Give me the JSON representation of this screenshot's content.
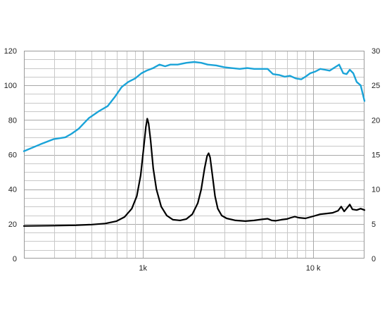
{
  "chart_data": {
    "type": "line",
    "title": "",
    "xlabel": "",
    "ylabel": "",
    "x_scale": "log",
    "xlim": [
      200,
      20000
    ],
    "ylim": [
      0,
      120
    ],
    "y2lim": [
      0,
      30
    ],
    "grid": true,
    "x_tick_labels": [
      {
        "value": 1000,
        "label": "1k"
      },
      {
        "value": 10000,
        "label": "10 k"
      }
    ],
    "y_ticks": [
      0,
      20,
      40,
      60,
      80,
      100,
      120
    ],
    "y2_ticks": [
      0,
      5,
      10,
      15,
      20,
      25,
      30
    ],
    "series": [
      {
        "axis": "left",
        "color": "#1aa3d8",
        "points": [
          [
            200,
            62
          ],
          [
            250,
            66
          ],
          [
            300,
            69
          ],
          [
            350,
            70
          ],
          [
            380,
            72
          ],
          [
            420,
            75
          ],
          [
            480,
            81
          ],
          [
            550,
            85
          ],
          [
            620,
            88
          ],
          [
            680,
            93
          ],
          [
            750,
            99
          ],
          [
            820,
            102
          ],
          [
            900,
            104
          ],
          [
            980,
            107
          ],
          [
            1050,
            108.5
          ],
          [
            1150,
            110
          ],
          [
            1250,
            112
          ],
          [
            1350,
            111
          ],
          [
            1450,
            112
          ],
          [
            1600,
            112
          ],
          [
            1800,
            113
          ],
          [
            2000,
            113.5
          ],
          [
            2200,
            113
          ],
          [
            2400,
            112
          ],
          [
            2700,
            111.5
          ],
          [
            3000,
            110.5
          ],
          [
            3300,
            110
          ],
          [
            3700,
            109.5
          ],
          [
            4100,
            110
          ],
          [
            4500,
            109.5
          ],
          [
            5000,
            109.5
          ],
          [
            5400,
            109.5
          ],
          [
            5800,
            106.5
          ],
          [
            6300,
            106
          ],
          [
            6800,
            105
          ],
          [
            7300,
            105.5
          ],
          [
            7900,
            104
          ],
          [
            8500,
            103.5
          ],
          [
            9000,
            105
          ],
          [
            9600,
            107
          ],
          [
            10300,
            108
          ],
          [
            11000,
            109.5
          ],
          [
            11700,
            109
          ],
          [
            12500,
            108.5
          ],
          [
            13200,
            110
          ],
          [
            14200,
            112
          ],
          [
            15000,
            107
          ],
          [
            15700,
            106.5
          ],
          [
            16400,
            109
          ],
          [
            17200,
            107
          ],
          [
            18000,
            102
          ],
          [
            19000,
            100
          ],
          [
            20000,
            91
          ]
        ]
      },
      {
        "axis": "right",
        "color": "#000000",
        "points": [
          [
            200,
            4.7
          ],
          [
            300,
            4.75
          ],
          [
            400,
            4.8
          ],
          [
            500,
            4.9
          ],
          [
            600,
            5.05
          ],
          [
            700,
            5.4
          ],
          [
            780,
            6.0
          ],
          [
            860,
            7.2
          ],
          [
            920,
            9.0
          ],
          [
            970,
            12.0
          ],
          [
            1010,
            16.0
          ],
          [
            1040,
            19.0
          ],
          [
            1060,
            20.2
          ],
          [
            1080,
            19.5
          ],
          [
            1110,
            17.0
          ],
          [
            1150,
            13.0
          ],
          [
            1200,
            10.0
          ],
          [
            1280,
            7.5
          ],
          [
            1380,
            6.2
          ],
          [
            1500,
            5.6
          ],
          [
            1650,
            5.5
          ],
          [
            1800,
            5.7
          ],
          [
            1950,
            6.4
          ],
          [
            2100,
            8.0
          ],
          [
            2200,
            10.0
          ],
          [
            2300,
            13.0
          ],
          [
            2380,
            14.8
          ],
          [
            2430,
            15.2
          ],
          [
            2480,
            14.6
          ],
          [
            2560,
            12.0
          ],
          [
            2650,
            9.0
          ],
          [
            2750,
            7.2
          ],
          [
            2900,
            6.2
          ],
          [
            3100,
            5.8
          ],
          [
            3500,
            5.5
          ],
          [
            4000,
            5.4
          ],
          [
            4500,
            5.5
          ],
          [
            5000,
            5.65
          ],
          [
            5400,
            5.75
          ],
          [
            5700,
            5.5
          ],
          [
            6000,
            5.45
          ],
          [
            6500,
            5.6
          ],
          [
            7000,
            5.7
          ],
          [
            7400,
            5.9
          ],
          [
            7800,
            6.05
          ],
          [
            8200,
            5.9
          ],
          [
            9000,
            5.8
          ],
          [
            10000,
            6.1
          ],
          [
            11000,
            6.4
          ],
          [
            12000,
            6.5
          ],
          [
            13000,
            6.6
          ],
          [
            14000,
            6.9
          ],
          [
            14600,
            7.5
          ],
          [
            15200,
            6.8
          ],
          [
            15800,
            7.3
          ],
          [
            16400,
            7.8
          ],
          [
            17000,
            7.1
          ],
          [
            18000,
            7.0
          ],
          [
            19000,
            7.2
          ],
          [
            20000,
            7.0
          ]
        ]
      }
    ]
  }
}
